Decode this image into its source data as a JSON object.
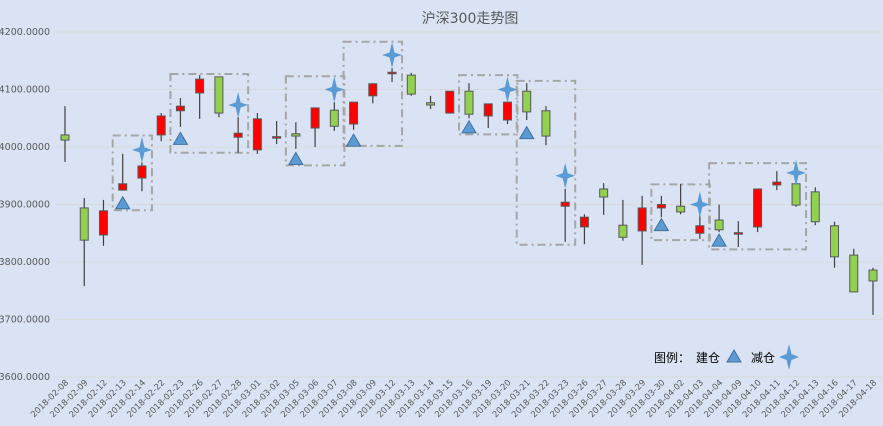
{
  "chart_data": {
    "type": "candlestick",
    "title": "沪深300走势图",
    "xlabel": "",
    "ylabel": "",
    "ylim": [
      3600,
      4200
    ],
    "yticks": [
      "3600.0000",
      "3700.0000",
      "3800.0000",
      "3900.0000",
      "4000.0000",
      "4100.0000",
      "4200.0000"
    ],
    "ytick_values": [
      3600,
      3700,
      3800,
      3900,
      4000,
      4100,
      4200
    ],
    "grid": true,
    "colors": {
      "up": "#ff0000",
      "down": "#92d050",
      "outline": "#595959",
      "marker": "#5b9bd5",
      "marker_edge": "#41719c",
      "box": "#a6a6a6"
    },
    "dates": [
      "2018-02-08",
      "2018-02-09",
      "2018-02-12",
      "2018-02-13",
      "2018-02-14",
      "2018-02-22",
      "2018-02-23",
      "2018-02-26",
      "2018-02-27",
      "2018-02-28",
      "2018-03-01",
      "2018-03-02",
      "2018-03-05",
      "2018-03-06",
      "2018-03-07",
      "2018-03-08",
      "2018-03-09",
      "2018-03-12",
      "2018-03-13",
      "2018-03-14",
      "2018-03-15",
      "2018-03-16",
      "2018-03-19",
      "2018-03-20",
      "2018-03-21",
      "2018-03-22",
      "2018-03-23",
      "2018-03-26",
      "2018-03-27",
      "2018-03-28",
      "2018-03-29",
      "2018-03-30",
      "2018-04-02",
      "2018-04-03",
      "2018-04-04",
      "2018-04-09",
      "2018-04-10",
      "2018-04-11",
      "2018-04-12",
      "2018-04-13",
      "2018-04-16",
      "2018-04-17",
      "2018-04-18"
    ],
    "ohlc": [
      [
        4021,
        4071,
        3974,
        4012
      ],
      [
        3894,
        3911,
        3758,
        3838
      ],
      [
        3847,
        3908,
        3828,
        3889
      ],
      [
        3925,
        3988,
        3925,
        3936
      ],
      [
        3946,
        3973,
        3923,
        3967
      ],
      [
        4021,
        4059,
        4010,
        4054
      ],
      [
        4063,
        4085,
        4035,
        4071
      ],
      [
        4094,
        4125,
        4049,
        4118
      ],
      [
        4122,
        4122,
        4052,
        4059
      ],
      [
        4017,
        4052,
        3990,
        4024
      ],
      [
        3995,
        4059,
        3988,
        4049
      ],
      [
        4017,
        4045,
        4005,
        4018
      ],
      [
        4023,
        4043,
        3997,
        4019
      ],
      [
        4033,
        4068,
        4000,
        4068
      ],
      [
        4064,
        4078,
        4028,
        4036
      ],
      [
        4040,
        4078,
        4030,
        4078
      ],
      [
        4089,
        4111,
        4076,
        4110
      ],
      [
        4129,
        4137,
        4113,
        4130
      ],
      [
        4125,
        4129,
        4089,
        4092
      ],
      [
        4077,
        4089,
        4066,
        4073
      ],
      [
        4059,
        4097,
        4059,
        4097
      ],
      [
        4097,
        4111,
        4050,
        4057
      ],
      [
        4054,
        4075,
        4033,
        4075
      ],
      [
        4047,
        4078,
        4040,
        4078
      ],
      [
        4097,
        4111,
        4047,
        4061
      ],
      [
        4063,
        4071,
        4003,
        4019
      ],
      [
        3897,
        3927,
        3835,
        3904
      ],
      [
        3861,
        3883,
        3831,
        3878
      ],
      [
        3927,
        3937,
        3882,
        3913
      ],
      [
        3864,
        3908,
        3837,
        3843
      ],
      [
        3854,
        3915,
        3795,
        3894
      ],
      [
        3894,
        3915,
        3878,
        3900
      ],
      [
        3897,
        3936,
        3883,
        3887
      ],
      [
        3850,
        3885,
        3840,
        3863
      ],
      [
        3873,
        3900,
        3852,
        3856
      ],
      [
        3850,
        3871,
        3826,
        3851
      ],
      [
        3861,
        3927,
        3852,
        3927
      ],
      [
        3934,
        3958,
        3925,
        3939
      ],
      [
        3936,
        3940,
        3896,
        3899
      ],
      [
        3922,
        3930,
        3864,
        3870
      ],
      [
        3863,
        3870,
        3790,
        3809
      ],
      [
        3812,
        3823,
        3748,
        3748
      ],
      [
        3786,
        3790,
        3708,
        3767
      ]
    ],
    "open_markers": [
      {
        "date": "2018-02-13",
        "value": 3903
      },
      {
        "date": "2018-02-23",
        "value": 4015
      },
      {
        "date": "2018-03-05",
        "value": 3980
      },
      {
        "date": "2018-03-08",
        "value": 4012
      },
      {
        "date": "2018-03-16",
        "value": 4035
      },
      {
        "date": "2018-03-21",
        "value": 4025
      },
      {
        "date": "2018-03-30",
        "value": 3865
      },
      {
        "date": "2018-04-04",
        "value": 3838
      }
    ],
    "reduce_markers": [
      {
        "date": "2018-02-14",
        "value": 3995
      },
      {
        "date": "2018-02-28",
        "value": 4073
      },
      {
        "date": "2018-03-07",
        "value": 4100
      },
      {
        "date": "2018-03-12",
        "value": 4160
      },
      {
        "date": "2018-03-20",
        "value": 4100
      },
      {
        "date": "2018-03-23",
        "value": 3950
      },
      {
        "date": "2018-04-03",
        "value": 3900
      },
      {
        "date": "2018-04-12",
        "value": 3955
      }
    ],
    "boxes": [
      {
        "from": "2018-02-13",
        "to": "2018-02-14",
        "low": 3890,
        "high": 4020
      },
      {
        "from": "2018-02-23",
        "to": "2018-02-28",
        "low": 3990,
        "high": 4127
      },
      {
        "from": "2018-03-05",
        "to": "2018-03-07",
        "low": 3968,
        "high": 4123
      },
      {
        "from": "2018-03-08",
        "to": "2018-03-12",
        "low": 4002,
        "high": 4183
      },
      {
        "from": "2018-03-16",
        "to": "2018-03-20",
        "low": 4022,
        "high": 4125
      },
      {
        "from": "2018-03-21",
        "to": "2018-03-23",
        "low": 3830,
        "high": 4115
      },
      {
        "from": "2018-03-30",
        "to": "2018-04-03",
        "low": 3838,
        "high": 3935
      },
      {
        "from": "2018-04-04",
        "to": "2018-04-12",
        "low": 3822,
        "high": 3972
      }
    ],
    "legend": {
      "title": "图例：",
      "open_label": "建仓",
      "reduce_label": "减仓",
      "position": "bottom-right"
    }
  }
}
